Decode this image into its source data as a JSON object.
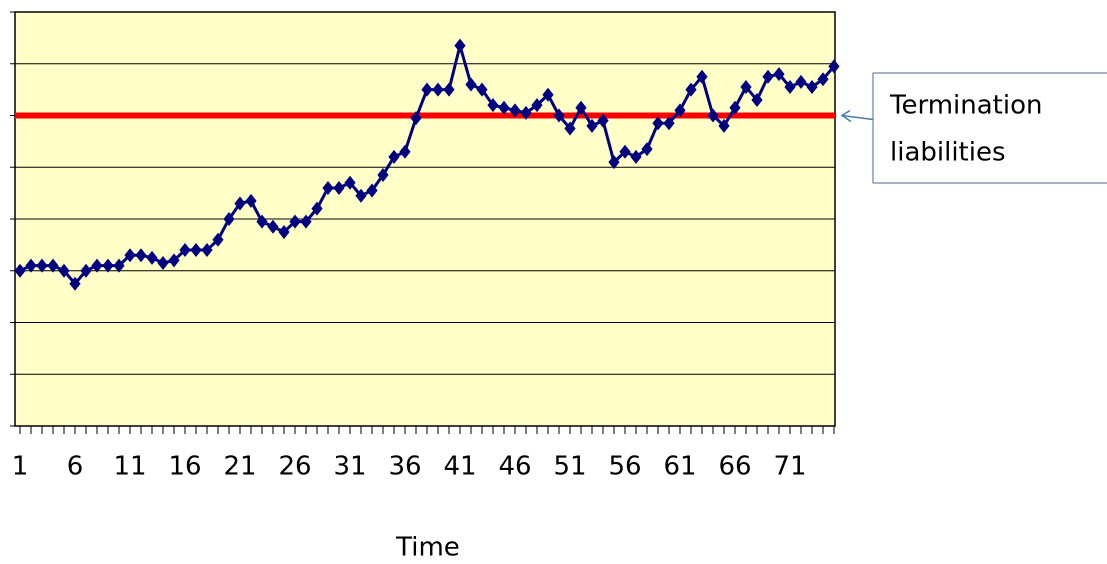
{
  "chart_data": {
    "type": "line",
    "x_label": "Time",
    "categories": [
      1,
      null,
      null,
      null,
      null,
      6,
      null,
      null,
      null,
      null,
      11,
      null,
      null,
      null,
      null,
      16,
      null,
      null,
      null,
      null,
      21,
      null,
      null,
      null,
      null,
      26,
      null,
      null,
      null,
      null,
      31,
      null,
      null,
      null,
      null,
      36,
      null,
      null,
      null,
      null,
      41,
      null,
      null,
      null,
      null,
      46,
      null,
      null,
      null,
      null,
      51,
      null,
      null,
      null,
      null,
      56,
      null,
      null,
      null,
      null,
      61,
      null,
      null,
      null,
      null,
      66,
      null,
      null,
      null,
      null,
      71,
      null,
      null,
      null,
      null
    ],
    "series": [
      {
        "name": null,
        "color": "#000080",
        "marker": "diamond",
        "values": [
          3.0,
          3.1,
          3.1,
          3.1,
          3.0,
          2.75,
          3.0,
          3.1,
          3.1,
          3.1,
          3.3,
          3.3,
          3.25,
          3.15,
          3.2,
          3.4,
          3.4,
          3.4,
          3.6,
          4.0,
          4.3,
          4.35,
          3.95,
          3.85,
          3.75,
          3.95,
          3.95,
          4.2,
          4.6,
          4.6,
          4.7,
          4.45,
          4.55,
          4.85,
          5.2,
          5.3,
          5.95,
          6.5,
          6.5,
          6.5,
          7.35,
          6.6,
          6.5,
          6.2,
          6.15,
          6.1,
          6.05,
          6.2,
          6.4,
          6.0,
          5.75,
          6.15,
          5.8,
          5.9,
          5.1,
          5.3,
          5.2,
          5.35,
          5.85,
          5.85,
          6.1,
          6.5,
          6.75,
          6.0,
          5.8,
          6.15,
          6.55,
          6.3,
          6.75,
          6.8,
          6.55,
          6.65,
          6.55,
          6.7,
          6.95
        ]
      }
    ],
    "ylim": [
      0,
      8
    ],
    "yticks": [
      0,
      1,
      2,
      3,
      4,
      5,
      6,
      7,
      8
    ],
    "show_ytick_labels": false,
    "grid": true,
    "plot_background": "#ffffc8",
    "reference_line": {
      "value": 6,
      "color": "#ff0000",
      "label": [
        "Termination",
        "liabilities"
      ]
    }
  }
}
